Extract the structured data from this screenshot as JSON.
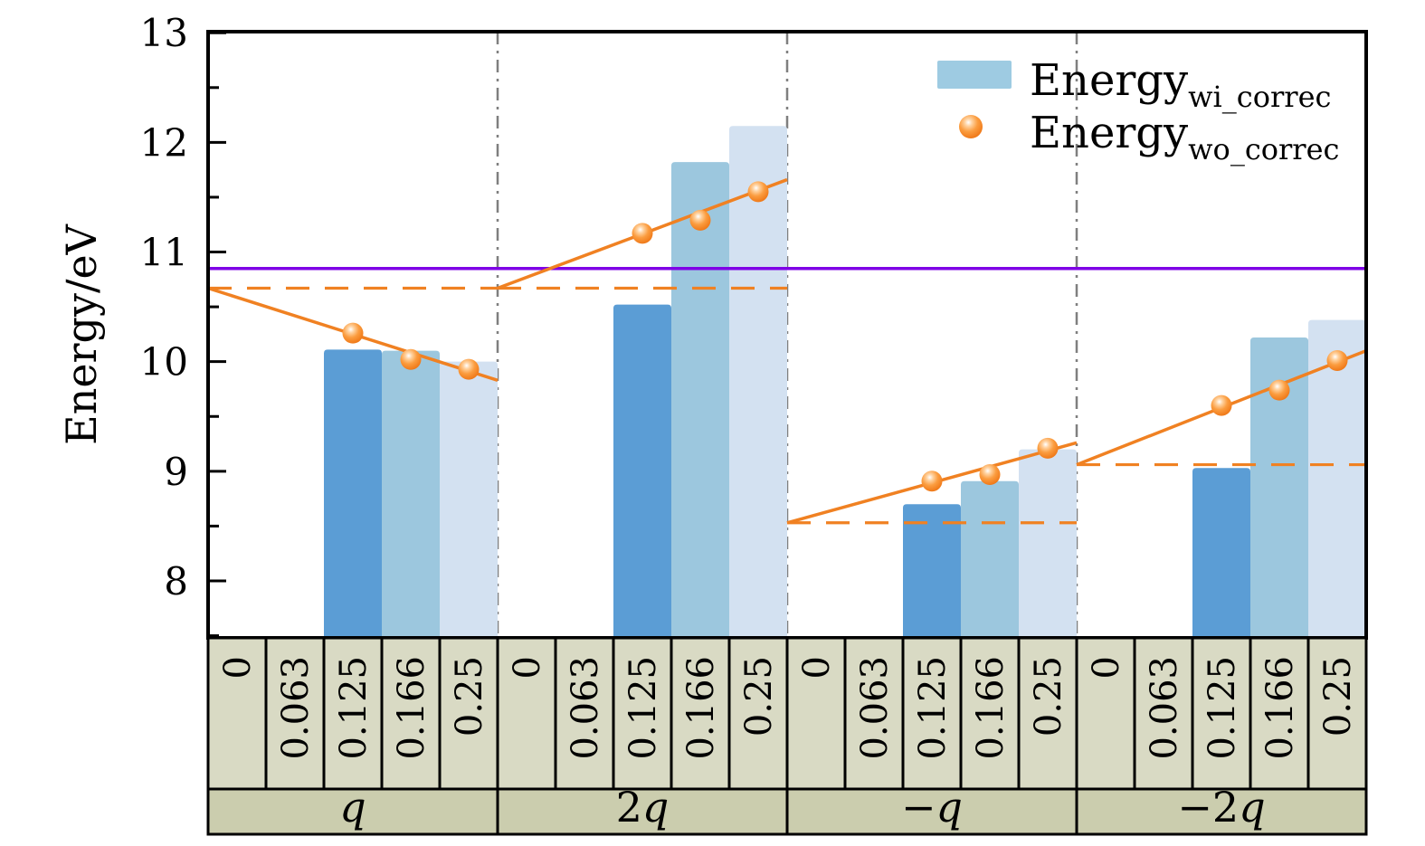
{
  "figure": {
    "y_axis_title": "Energy/eV",
    "legend": {
      "bars": {
        "main": "Energy",
        "sub": "wi_correc"
      },
      "points": {
        "main": "Energy",
        "sub": "wo_correc"
      }
    }
  },
  "chart_data": {
    "type": "bar",
    "title": "",
    "xlabel": "",
    "ylabel": "Energy/eV",
    "ylim": [
      7.48,
      13.01
    ],
    "yticks": [
      8,
      9,
      10,
      11,
      12,
      13
    ],
    "minor_tick_step": 0.5,
    "grid": false,
    "legend_position": "upper right",
    "concentrations": [
      "0",
      "0.063",
      "0.125",
      "0.166",
      "0.25"
    ],
    "bar_slots": [
      2,
      3,
      4
    ],
    "legend": {
      "bars": {
        "main": "Energy",
        "sub": "wi_correc"
      },
      "points": {
        "main": "Energy",
        "sub": "wo_correc"
      }
    },
    "groups": [
      {
        "label": "q",
        "bars_eV": [
          10.11,
          10.1,
          10.0
        ],
        "points_eV": [
          10.26,
          10.02,
          9.93
        ],
        "dashed_baseline_eV": 10.67,
        "fit_line_end_eV": 9.83
      },
      {
        "label": "2q",
        "bars_eV": [
          10.52,
          11.82,
          12.15
        ],
        "points_eV": [
          11.17,
          11.29,
          11.55
        ],
        "dashed_baseline_eV": 10.67,
        "fit_line_end_eV": 11.66
      },
      {
        "label": "−q",
        "bars_eV": [
          8.7,
          8.91,
          9.2
        ],
        "points_eV": [
          8.91,
          8.97,
          9.21
        ],
        "dashed_baseline_eV": 8.53,
        "fit_line_end_eV": 9.26
      },
      {
        "label": "−2q",
        "bars_eV": [
          9.03,
          10.22,
          10.38
        ],
        "points_eV": [
          9.6,
          9.74,
          10.01
        ],
        "dashed_baseline_eV": 9.06,
        "fit_line_end_eV": 10.1
      }
    ],
    "reference_line_eV": 10.85,
    "colors": {
      "bar_dark": "#5b9dd5",
      "bar_mid": "#9cc7de",
      "bar_light": "#d3e1f1",
      "legend_swatch": "#9ecbe2",
      "orange": "#f08122",
      "purple": "#7f00e6",
      "separator_gray": "#7f7f7f",
      "table_top_bg": "#d9dac4",
      "table_bottom_bg": "#cbcdae"
    }
  }
}
